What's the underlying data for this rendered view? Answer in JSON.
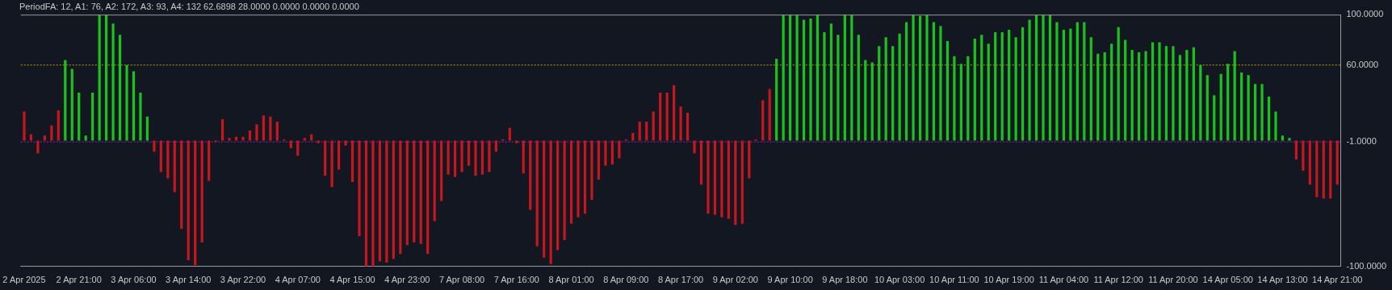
{
  "chart_data": {
    "type": "bar",
    "title": "PeriodFA: 12, A1: 76, A2: 172, A3: 93, A4: 132 62.6898 28.0000 0.0000 0.0000 0.0000",
    "categories": [
      "2 Apr 2025",
      null,
      null,
      null,
      null,
      null,
      null,
      null,
      "2 Apr 21:00",
      null,
      null,
      null,
      null,
      null,
      null,
      null,
      "3 Apr 06:00",
      null,
      null,
      null,
      null,
      null,
      null,
      null,
      "3 Apr 14:00",
      null,
      null,
      null,
      null,
      null,
      null,
      null,
      "3 Apr 22:00",
      null,
      null,
      null,
      null,
      null,
      null,
      null,
      "4 Apr 07:00",
      null,
      null,
      null,
      null,
      null,
      null,
      null,
      "4 Apr 15:00",
      null,
      null,
      null,
      null,
      null,
      null,
      null,
      "4 Apr 23:00",
      null,
      null,
      null,
      null,
      null,
      null,
      null,
      "7 Apr 08:00",
      null,
      null,
      null,
      null,
      null,
      null,
      null,
      "7 Apr 16:00",
      null,
      null,
      null,
      null,
      null,
      null,
      null,
      "8 Apr 01:00",
      null,
      null,
      null,
      null,
      null,
      null,
      null,
      "8 Apr 09:00",
      null,
      null,
      null,
      null,
      null,
      null,
      null,
      "8 Apr 17:00",
      null,
      null,
      null,
      null,
      null,
      null,
      null,
      "9 Apr 02:00",
      null,
      null,
      null,
      null,
      null,
      null,
      null,
      "9 Apr 10:00",
      null,
      null,
      null,
      null,
      null,
      null,
      null,
      "9 Apr 18:00",
      null,
      null,
      null,
      null,
      null,
      null,
      null,
      "10 Apr 03:00",
      null,
      null,
      null,
      null,
      null,
      null,
      null,
      "10 Apr 11:00",
      null,
      null,
      null,
      null,
      null,
      null,
      null,
      "10 Apr 19:00",
      null,
      null,
      null,
      null,
      null,
      null,
      null,
      "11 Apr 04:00",
      null,
      null,
      null,
      null,
      null,
      null,
      null,
      "11 Apr 12:00",
      null,
      null,
      null,
      null,
      null,
      null,
      null,
      "11 Apr 20:00",
      null,
      null,
      null,
      null,
      null,
      null,
      null,
      "14 Apr 05:00",
      null,
      null,
      null,
      null,
      null,
      null,
      null,
      "14 Apr 13:00",
      null,
      null,
      null,
      null,
      null,
      null,
      null,
      "14 Apr 21:00"
    ],
    "values": [
      23,
      5,
      -10,
      4,
      12,
      24,
      64,
      57,
      38,
      4,
      38,
      100,
      100,
      93,
      84,
      60,
      55,
      38,
      19,
      -9,
      -25,
      -30,
      -41,
      -70,
      -95,
      -99,
      -81,
      -32,
      -1,
      17,
      2,
      3,
      3,
      8,
      13,
      20,
      19,
      15,
      1,
      -6,
      -12,
      2,
      5,
      -2,
      -28,
      -37,
      -23,
      -4,
      -33,
      -76,
      -100,
      -100,
      -96,
      -97,
      -94,
      -90,
      -83,
      -81,
      -82,
      -90,
      -64,
      -48,
      -27,
      -29,
      -25,
      -20,
      -28,
      -27,
      -25,
      -9,
      1,
      10,
      -2,
      -26,
      -55,
      -84,
      -93,
      -98,
      -87,
      -79,
      -66,
      -61,
      -58,
      -47,
      -31,
      -20,
      -19,
      -14,
      1,
      6,
      15,
      15,
      23,
      38,
      38,
      44,
      27,
      22,
      -10,
      -35,
      -58,
      -59,
      -61,
      -62,
      -67,
      -66,
      -30,
      1,
      32,
      41,
      65,
      100,
      100,
      100,
      96,
      97,
      100,
      86,
      93,
      84,
      100,
      100,
      84,
      64,
      62,
      75,
      82,
      75,
      85,
      94,
      100,
      99,
      100,
      94,
      91,
      79,
      67,
      61,
      67,
      81,
      84,
      77,
      86,
      86,
      88,
      82,
      90,
      96,
      100,
      100,
      100,
      94,
      88,
      89,
      94,
      94,
      82,
      69,
      70,
      77,
      90,
      80,
      72,
      70,
      71,
      78,
      78,
      75,
      75,
      68,
      72,
      74,
      60,
      52,
      36,
      53,
      61,
      71,
      54,
      52,
      45,
      45,
      35,
      23,
      4,
      2,
      -15,
      -24,
      -35,
      -45,
      -46,
      -46,
      -35
    ],
    "colors": [
      "#c8161e",
      "#c8161e",
      "#c8161e",
      "#c8161e",
      "#c8161e",
      "#c8161e",
      "#1cc21c",
      "#1cc21c",
      "#1cc21c",
      "#1cc21c",
      "#1cc21c",
      "#1cc21c",
      "#1cc21c",
      "#1cc21c",
      "#1cc21c",
      "#1cc21c",
      "#1cc21c",
      "#1cc21c",
      "#1cc21c",
      "#c8161e",
      "#c8161e",
      "#c8161e",
      "#c8161e",
      "#c8161e",
      "#c8161e",
      "#c8161e",
      "#c8161e",
      "#c8161e",
      "#c8161e",
      "#c8161e",
      "#c8161e",
      "#c8161e",
      "#c8161e",
      "#c8161e",
      "#c8161e",
      "#c8161e",
      "#c8161e",
      "#c8161e",
      "#c8161e",
      "#c8161e",
      "#c8161e",
      "#c8161e",
      "#c8161e",
      "#c8161e",
      "#c8161e",
      "#c8161e",
      "#c8161e",
      "#c8161e",
      "#c8161e",
      "#c8161e",
      "#c8161e",
      "#c8161e",
      "#c8161e",
      "#c8161e",
      "#c8161e",
      "#c8161e",
      "#c8161e",
      "#c8161e",
      "#c8161e",
      "#c8161e",
      "#c8161e",
      "#c8161e",
      "#c8161e",
      "#c8161e",
      "#c8161e",
      "#c8161e",
      "#c8161e",
      "#c8161e",
      "#c8161e",
      "#c8161e",
      "#c8161e",
      "#c8161e",
      "#c8161e",
      "#c8161e",
      "#c8161e",
      "#c8161e",
      "#c8161e",
      "#c8161e",
      "#c8161e",
      "#c8161e",
      "#c8161e",
      "#c8161e",
      "#c8161e",
      "#c8161e",
      "#c8161e",
      "#c8161e",
      "#c8161e",
      "#c8161e",
      "#c8161e",
      "#c8161e",
      "#c8161e",
      "#c8161e",
      "#c8161e",
      "#c8161e",
      "#c8161e",
      "#c8161e",
      "#c8161e",
      "#c8161e",
      "#c8161e",
      "#c8161e",
      "#c8161e",
      "#c8161e",
      "#c8161e",
      "#c8161e",
      "#c8161e",
      "#c8161e",
      "#c8161e",
      "#c8161e",
      "#c8161e",
      "#c8161e",
      "#1cc21c",
      "#1cc21c",
      "#1cc21c",
      "#1cc21c",
      "#1cc21c",
      "#1cc21c",
      "#1cc21c",
      "#1cc21c",
      "#1cc21c",
      "#1cc21c",
      "#1cc21c",
      "#1cc21c",
      "#1cc21c",
      "#1cc21c",
      "#1cc21c",
      "#1cc21c",
      "#1cc21c",
      "#1cc21c",
      "#1cc21c",
      "#1cc21c",
      "#1cc21c",
      "#1cc21c",
      "#1cc21c",
      "#1cc21c",
      "#1cc21c",
      "#1cc21c",
      "#1cc21c",
      "#1cc21c",
      "#1cc21c",
      "#1cc21c",
      "#1cc21c",
      "#1cc21c",
      "#1cc21c",
      "#1cc21c",
      "#1cc21c",
      "#1cc21c",
      "#1cc21c",
      "#1cc21c",
      "#1cc21c",
      "#1cc21c",
      "#1cc21c",
      "#1cc21c",
      "#1cc21c",
      "#1cc21c",
      "#1cc21c",
      "#1cc21c",
      "#1cc21c",
      "#1cc21c",
      "#1cc21c",
      "#1cc21c",
      "#1cc21c",
      "#1cc21c",
      "#1cc21c",
      "#1cc21c",
      "#1cc21c",
      "#1cc21c",
      "#1cc21c",
      "#1cc21c",
      "#1cc21c",
      "#1cc21c",
      "#1cc21c",
      "#1cc21c",
      "#1cc21c",
      "#1cc21c",
      "#1cc21c",
      "#1cc21c",
      "#1cc21c",
      "#1cc21c",
      "#1cc21c",
      "#1cc21c",
      "#1cc21c",
      "#1cc21c",
      "#1cc21c",
      "#1cc21c",
      "#1cc21c",
      "#1cc21c",
      "#c8161e",
      "#c8161e",
      "#c8161e",
      "#c8161e",
      "#c8161e",
      "#c8161e",
      "#c8161e"
    ],
    "ylim": [
      -100,
      100
    ],
    "yticks": [
      {
        "value": 100,
        "label": "100.0000"
      },
      {
        "value": 60,
        "label": "60.0000"
      },
      {
        "value": -1,
        "label": "-1.0000"
      },
      {
        "value": -100,
        "label": "-100.0000"
      }
    ],
    "ref_lines": [
      {
        "axis": "y",
        "value": 60,
        "color": "#b3a300",
        "line_style": "dotted"
      },
      {
        "axis": "y",
        "value": -1,
        "color": "#a020c0",
        "line_style": "dotted"
      }
    ]
  }
}
